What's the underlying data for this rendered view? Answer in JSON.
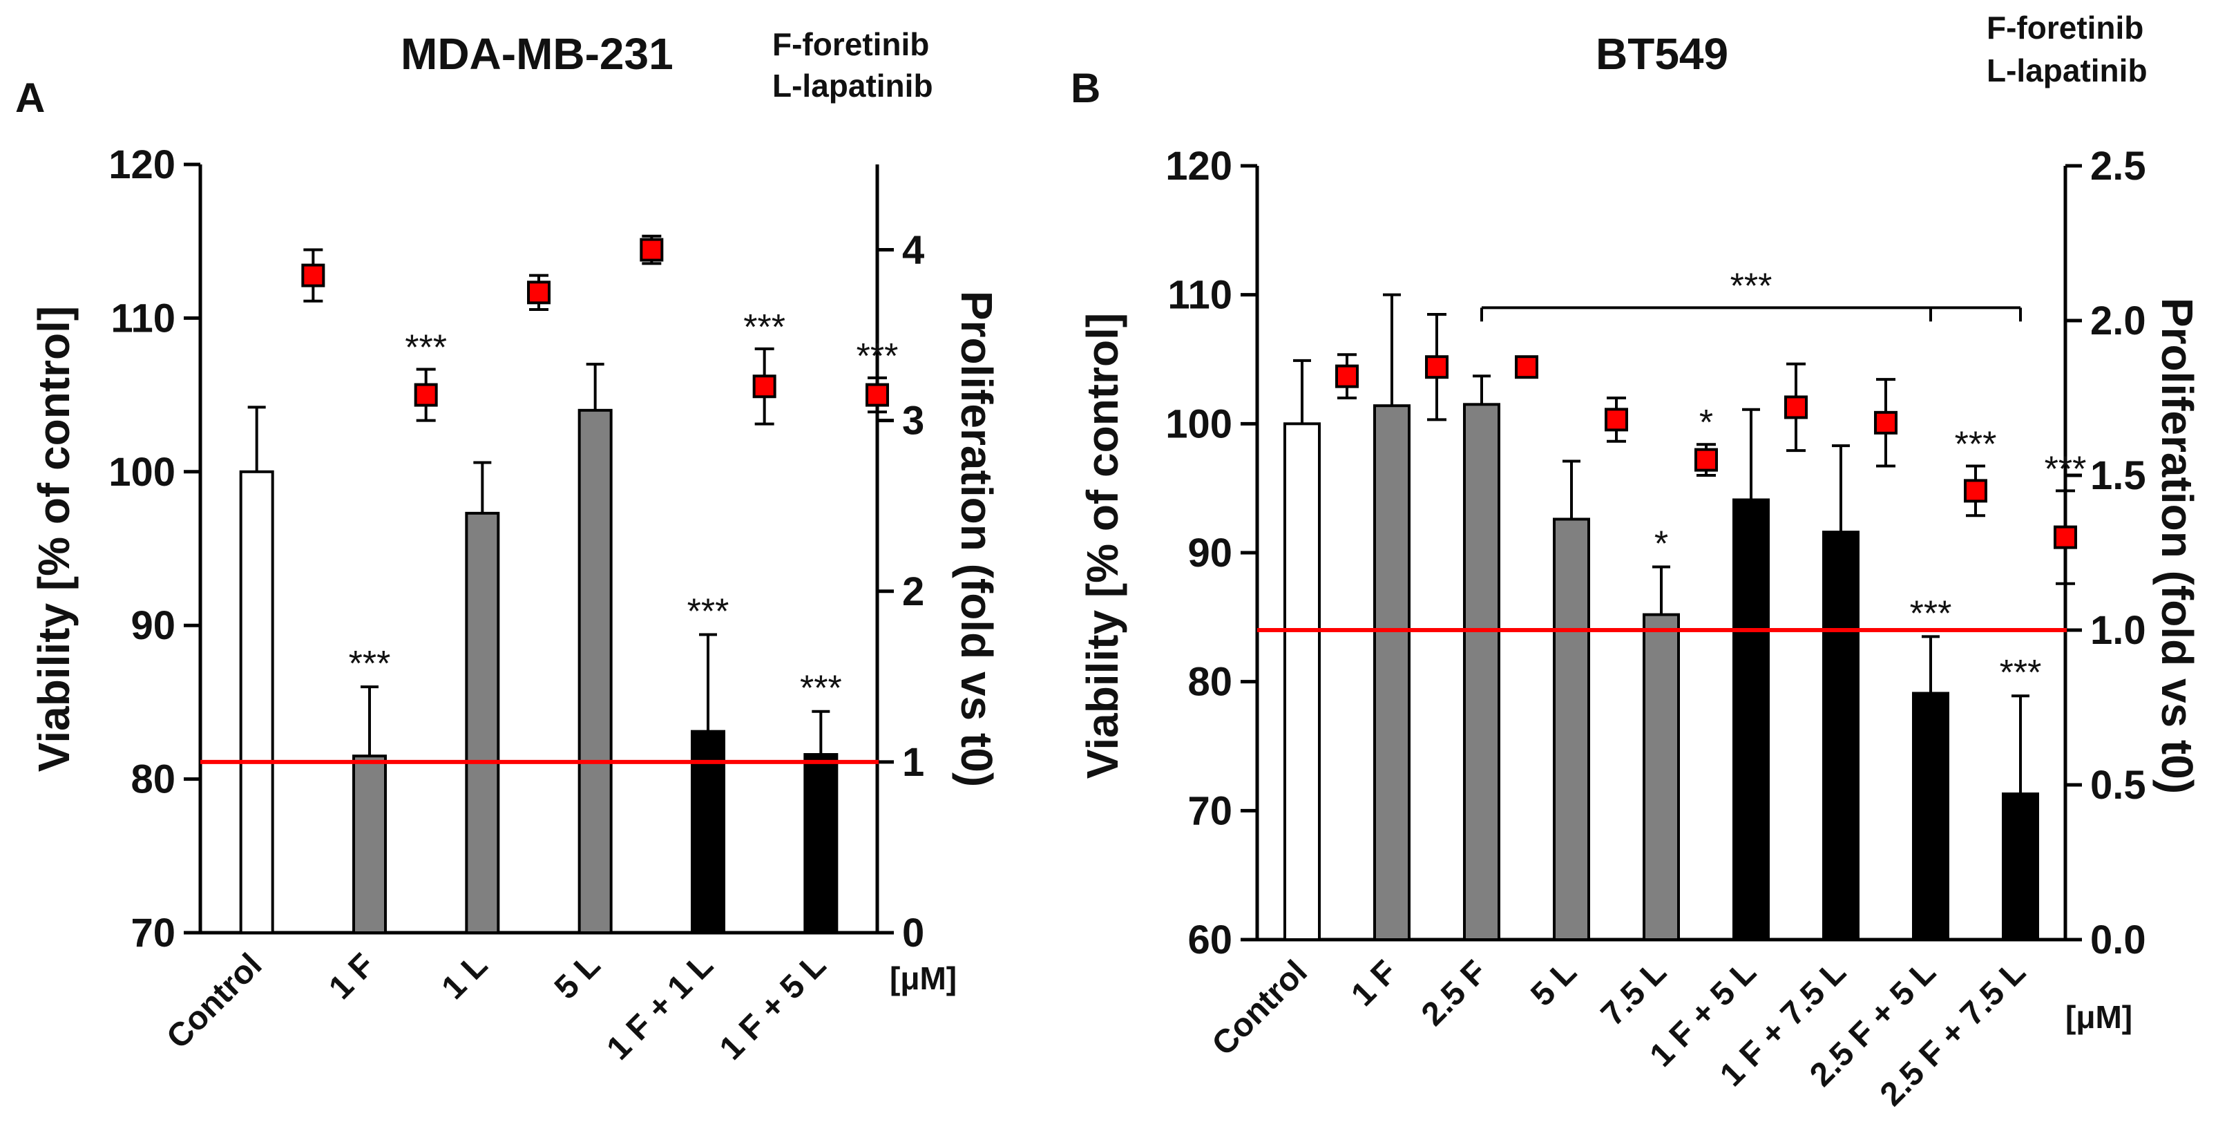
{
  "chart_data": [
    {
      "type": "bar",
      "panel_label": "A",
      "title": "MDA-MB-231",
      "legend_lines": [
        "F-foretinib",
        "L-lapatinib"
      ],
      "unit_label": "[μM]",
      "ylabel": "Viability [% of control]",
      "ylabel_right": "Proliferation (fold vs t0)",
      "ylim": [
        70,
        120
      ],
      "yticks": [
        70,
        80,
        90,
        100,
        110,
        120
      ],
      "ylim_right": [
        0,
        4.5
      ],
      "yticks_right": [
        "0",
        "1",
        "2",
        "3",
        "4"
      ],
      "yticks_right_values": [
        0,
        1,
        2,
        3,
        4
      ],
      "reference_line_right": 1,
      "categories": [
        "Control",
        "1 F",
        "1 L",
        "5 L",
        "1 F + 1 L",
        "1 F + 5 L"
      ],
      "bar_styles": [
        "white",
        "gray",
        "gray",
        "gray",
        "black",
        "black"
      ],
      "viability": [
        100,
        81.5,
        97.3,
        104,
        83.1,
        81.6
      ],
      "viability_err": [
        4.2,
        4.5,
        3.3,
        3.0,
        6.3,
        2.8
      ],
      "viability_sig": [
        "",
        "***",
        "",
        "",
        "***",
        "***"
      ],
      "proliferation": [
        3.85,
        3.15,
        3.75,
        4.0,
        3.2,
        3.15
      ],
      "proliferation_err": [
        0.15,
        0.15,
        0.1,
        0.08,
        0.22,
        0.1
      ],
      "proliferation_sig": [
        "",
        "***",
        "",
        "",
        "***",
        "***"
      ],
      "colors": {
        "bar_gray": "#808080",
        "bar_black": "#000000",
        "marker": "#ff0000",
        "refline": "#ff0000"
      }
    },
    {
      "type": "bar",
      "panel_label": "B",
      "title": "BT549",
      "legend_lines": [
        "F-foretinib",
        "L-lapatinib"
      ],
      "unit_label": "[μM]",
      "ylabel": "Viability [% of control]",
      "ylabel_right": "Proliferation (fold vs t0)",
      "ylim": [
        60,
        120
      ],
      "yticks": [
        60,
        70,
        80,
        90,
        100,
        110,
        120
      ],
      "ylim_right": [
        0,
        2.5
      ],
      "yticks_right": [
        "0.0",
        "0.5",
        "1.0",
        "1.5",
        "2.0",
        "2.5"
      ],
      "yticks_right_values": [
        0,
        0.5,
        1.0,
        1.5,
        2.0,
        2.5
      ],
      "reference_line_right": 1.0,
      "categories": [
        "Control",
        "1 F",
        "2.5 F",
        "5 L",
        "7.5 L",
        "1 F + 5 L",
        "1 F + 7.5 L",
        "2.5 F + 5 L",
        "2.5 F + 7.5 L"
      ],
      "bar_styles": [
        "white",
        "gray",
        "gray",
        "gray",
        "gray",
        "black",
        "black",
        "black",
        "black"
      ],
      "viability": [
        100,
        101.4,
        101.5,
        92.6,
        85.2,
        94.1,
        91.6,
        79.1,
        71.3
      ],
      "viability_err": [
        4.9,
        8.6,
        2.2,
        4.5,
        3.7,
        7.0,
        6.7,
        4.4,
        7.6
      ],
      "viability_sig": [
        "",
        "",
        "",
        "",
        "*",
        "",
        "",
        "***",
        "***"
      ],
      "proliferation": [
        1.82,
        1.85,
        1.85,
        1.68,
        1.55,
        1.72,
        1.67,
        1.45,
        1.3
      ],
      "proliferation_err": [
        0.07,
        0.17,
        0.02,
        0.07,
        0.05,
        0.14,
        0.14,
        0.08,
        0.15
      ],
      "proliferation_sig": [
        "",
        "",
        "",
        "",
        "*",
        "",
        "",
        "***",
        "***"
      ],
      "bracket": {
        "from_category": "2.5 F",
        "to_categories": [
          "2.5 F + 5 L",
          "2.5 F + 7.5 L"
        ],
        "label": "***",
        "viability_level": 109
      },
      "colors": {
        "bar_gray": "#808080",
        "bar_black": "#000000",
        "marker": "#ff0000",
        "refline": "#ff0000"
      }
    }
  ]
}
